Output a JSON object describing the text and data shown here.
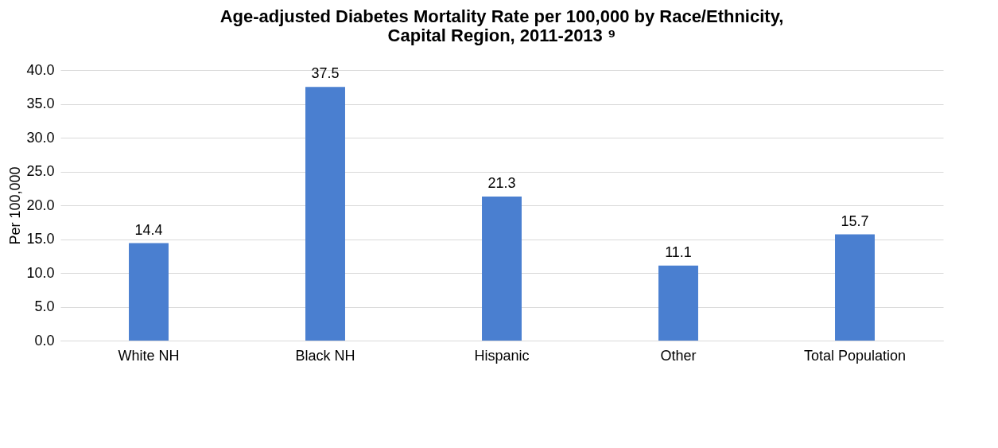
{
  "chart_data": {
    "type": "bar",
    "title": "Age-adjusted Diabetes Mortality Rate per 100,000 by Race/Ethnicity, Capital Region, 2011-2013 ⁹",
    "ylabel": "Per 100,000",
    "categories": [
      "White NH",
      "Black NH",
      "Hispanic",
      "Other",
      "Total Population"
    ],
    "values": [
      14.4,
      37.5,
      21.3,
      11.1,
      15.7
    ],
    "color": "#4a7fd0",
    "ylim": [
      0,
      40
    ],
    "yticks": [
      {
        "value": 0,
        "label": "0.0"
      },
      {
        "value": 5,
        "label": "5.0"
      },
      {
        "value": 10,
        "label": "10.0"
      },
      {
        "value": 15,
        "label": "15.0"
      },
      {
        "value": 20,
        "label": "20.0"
      },
      {
        "value": 25,
        "label": "25.0"
      },
      {
        "value": 30,
        "label": "30.0"
      },
      {
        "value": 35,
        "label": "35.0"
      },
      {
        "value": 40,
        "label": "40.0"
      }
    ],
    "grid": "y",
    "data_labels": true
  }
}
